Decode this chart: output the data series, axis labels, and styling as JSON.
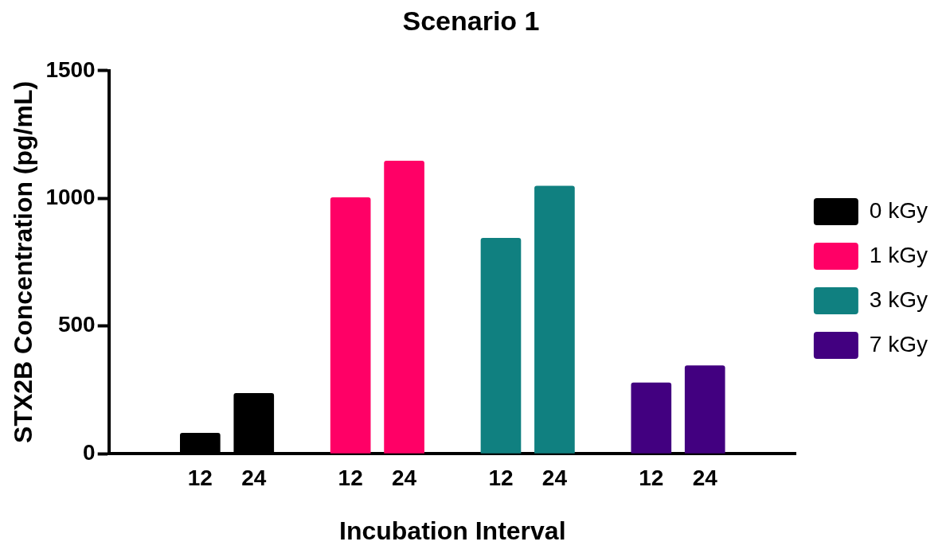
{
  "chart_data": {
    "type": "bar",
    "title": "Scenario 1",
    "xlabel": "Incubation Interval",
    "ylabel": "STX2B Concentration (pg/mL)",
    "categories": [
      "12",
      "24",
      "12",
      "24",
      "12",
      "24",
      "12",
      "24"
    ],
    "series": [
      {
        "name": "0 kGy",
        "color": "#000000",
        "values": [
          80,
          236,
          null,
          null,
          null,
          null,
          null,
          null
        ]
      },
      {
        "name": "1 kGy",
        "color": "#ff0066",
        "values": [
          null,
          null,
          1003,
          1146,
          null,
          null,
          null,
          null
        ]
      },
      {
        "name": "3 kGy",
        "color": "#108080",
        "values": [
          null,
          null,
          null,
          null,
          844,
          1048,
          null,
          null
        ]
      },
      {
        "name": "7 kGy",
        "color": "#420080",
        "values": [
          null,
          null,
          null,
          null,
          null,
          null,
          277,
          344
        ]
      }
    ],
    "ylim": [
      0,
      1500
    ],
    "yticks": [
      0,
      500,
      1000,
      1500
    ],
    "grid": false,
    "legend": "right"
  }
}
